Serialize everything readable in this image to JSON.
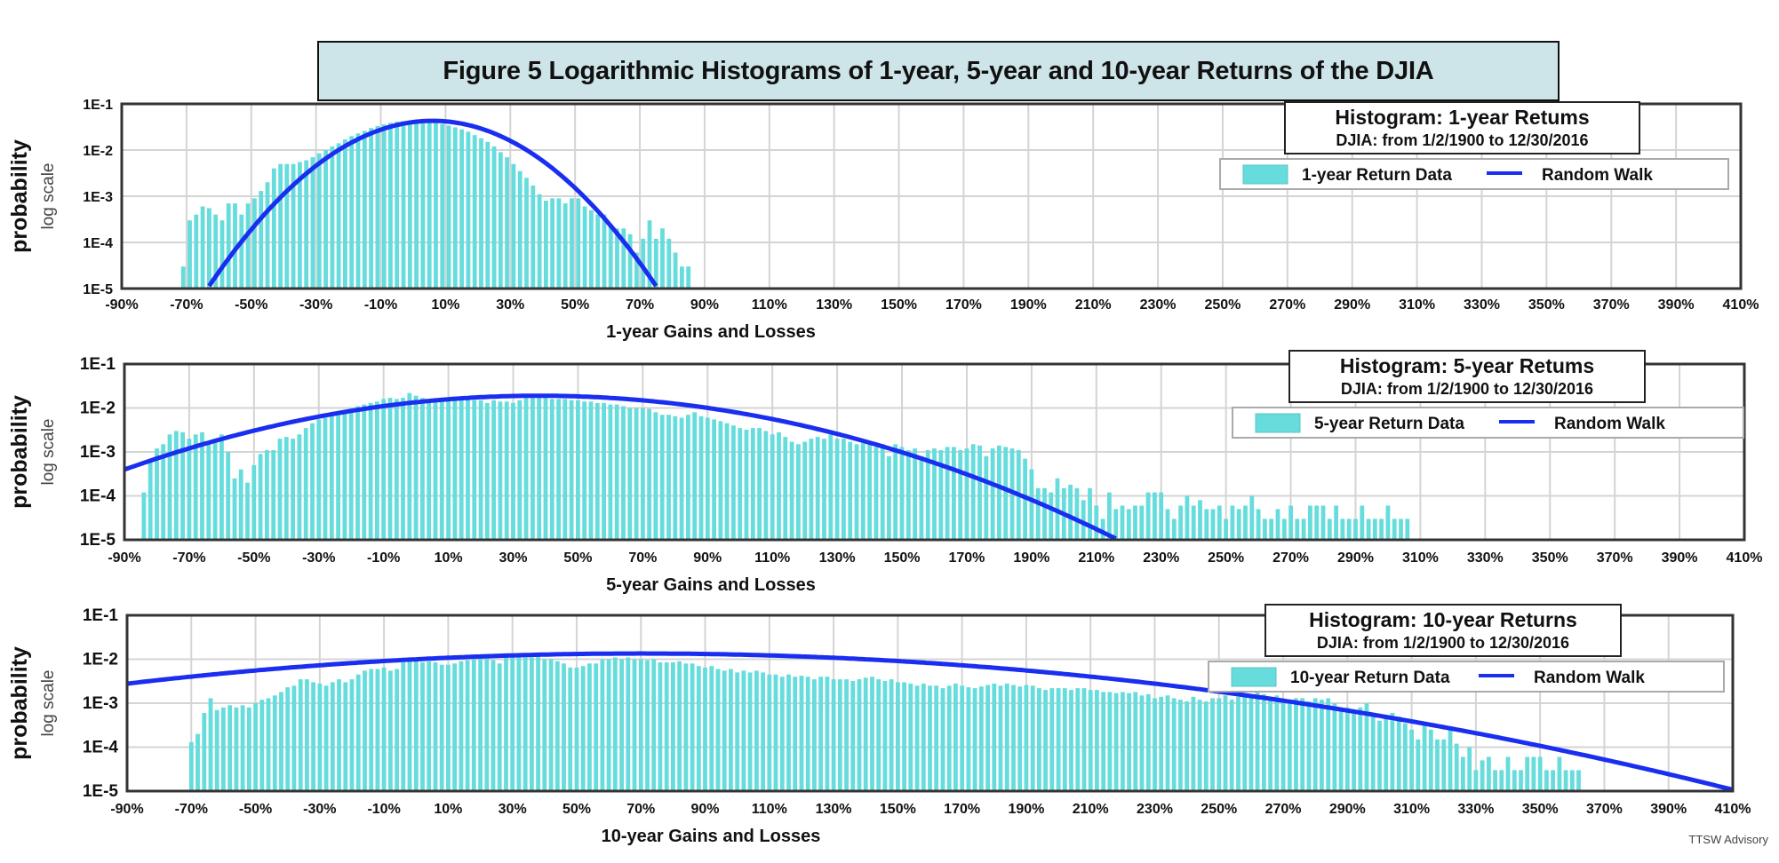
{
  "figure_title": "Figure 5 Logarithmic Histograms of 1-year, 5-year and 10-year Returns of the DJIA",
  "credit": "TTSW Advisory",
  "colors": {
    "bar": "#66dcdc",
    "line": "#1a2ef0",
    "grid": "#d4d4d4",
    "title_bg": "#cde5e8"
  },
  "chart_data": [
    {
      "type": "bar",
      "name": "1-year",
      "title": "Histogram: 1-year Retums",
      "subtitle": "DJIA: from 1/2/1900 to 12/30/2016",
      "legend": [
        "1-year Return Data",
        "Random Walk"
      ],
      "legend_position": "top-right",
      "xlabel": "1-year Gains and Losses",
      "ylabel": "probability",
      "ylabel2": "log scale",
      "yscale": "log",
      "ylim": [
        1e-05,
        0.1
      ],
      "yticks": [
        "1E-1",
        "1E-2",
        "1E-3",
        "1E-4",
        "1E-5"
      ],
      "xlim": [
        -90,
        410
      ],
      "xticks": [
        "-90%",
        "-70%",
        "-50%",
        "-30%",
        "-10%",
        "10%",
        "30%",
        "50%",
        "70%",
        "90%",
        "110%",
        "130%",
        "150%",
        "170%",
        "190%",
        "210%",
        "230%",
        "250%",
        "270%",
        "290%",
        "310%",
        "330%",
        "350%",
        "370%",
        "390%",
        "410%"
      ],
      "grid": true,
      "bin_width": 2,
      "bins_start": -71,
      "values": [
        3e-05,
        0.0003,
        0.0004,
        0.0006,
        0.00055,
        0.0004,
        0.0003,
        0.0007,
        0.0007,
        0.0004,
        0.0007,
        0.0009,
        0.0013,
        0.002,
        0.004,
        0.005,
        0.005,
        0.005,
        0.0055,
        0.006,
        0.007,
        0.0085,
        0.01,
        0.012,
        0.014,
        0.017,
        0.02,
        0.023,
        0.026,
        0.03,
        0.033,
        0.036,
        0.039,
        0.041,
        0.042,
        0.043,
        0.043,
        0.042,
        0.041,
        0.039,
        0.037,
        0.034,
        0.031,
        0.028,
        0.025,
        0.021,
        0.018,
        0.015,
        0.012,
        0.009,
        0.007,
        0.005,
        0.0035,
        0.0025,
        0.0017,
        0.0011,
        0.0008,
        0.0009,
        0.0009,
        0.0007,
        0.0009,
        0.0009,
        0.0006,
        0.0005,
        0.0004,
        0.0004,
        0.00025,
        0.0002,
        0.0002,
        0.00015,
        6e-05,
        0.00012,
        0.0003,
        0.00012,
        0.0002,
        0.00012,
        6e-05,
        3e-05,
        3e-05
      ],
      "random_walk": {
        "mean": 6,
        "sd": 17,
        "peak": 0.043
      }
    },
    {
      "type": "bar",
      "name": "5-year",
      "title": "Histogram: 5-year Retums",
      "subtitle": "DJIA: from 1/2/1900 to 12/30/2016",
      "legend": [
        "5-year Return Data",
        "Random Walk"
      ],
      "legend_position": "top-right",
      "xlabel": "5-year Gains and Losses",
      "ylabel": "probability",
      "ylabel2": "log scale",
      "yscale": "log",
      "ylim": [
        1e-05,
        0.1
      ],
      "yticks": [
        "1E-1",
        "1E-2",
        "1E-3",
        "1E-4",
        "1E-5"
      ],
      "xlim": [
        -90,
        410
      ],
      "xticks": [
        "-90%",
        "-70%",
        "-50%",
        "-30%",
        "-10%",
        "10%",
        "30%",
        "50%",
        "70%",
        "90%",
        "110%",
        "130%",
        "150%",
        "170%",
        "190%",
        "210%",
        "230%",
        "250%",
        "270%",
        "290%",
        "310%",
        "330%",
        "350%",
        "370%",
        "390%",
        "410%"
      ],
      "grid": true,
      "bin_width": 2,
      "bins_start": -84,
      "values": [
        0.00012,
        0.0006,
        0.0012,
        0.0015,
        0.0025,
        0.003,
        0.0028,
        0.002,
        0.0025,
        0.0028,
        0.0015,
        0.002,
        0.0025,
        0.001,
        0.00025,
        0.0004,
        0.0002,
        0.0005,
        0.0009,
        0.0011,
        0.0011,
        0.002,
        0.0022,
        0.002,
        0.0025,
        0.0035,
        0.0045,
        0.0055,
        0.006,
        0.007,
        0.008,
        0.009,
        0.01,
        0.011,
        0.012,
        0.013,
        0.014,
        0.016,
        0.017,
        0.016,
        0.017,
        0.022,
        0.019,
        0.017,
        0.015,
        0.015,
        0.014,
        0.015,
        0.015,
        0.016,
        0.016,
        0.015,
        0.015,
        0.013,
        0.015,
        0.014,
        0.014,
        0.013,
        0.015,
        0.017,
        0.017,
        0.017,
        0.017,
        0.016,
        0.016,
        0.016,
        0.015,
        0.015,
        0.014,
        0.014,
        0.013,
        0.013,
        0.012,
        0.012,
        0.011,
        0.01,
        0.01,
        0.01,
        0.0095,
        0.008,
        0.007,
        0.007,
        0.0065,
        0.006,
        0.007,
        0.008,
        0.0065,
        0.006,
        0.0055,
        0.005,
        0.0045,
        0.004,
        0.0035,
        0.0032,
        0.0035,
        0.0035,
        0.003,
        0.0025,
        0.0028,
        0.0022,
        0.0017,
        0.0015,
        0.0017,
        0.002,
        0.0022,
        0.002,
        0.0025,
        0.002,
        0.002,
        0.0017,
        0.0015,
        0.0016,
        0.0017,
        0.0013,
        0.0015,
        0.0008,
        0.0015,
        0.0013,
        0.0011,
        0.0012,
        0.0008,
        0.0011,
        0.0012,
        0.0011,
        0.0013,
        0.0013,
        0.0011,
        0.0012,
        0.0015,
        0.0014,
        0.0008,
        0.0012,
        0.0014,
        0.0013,
        0.0012,
        0.0011,
        0.0007,
        0.0004,
        0.00015,
        0.00015,
        0.00012,
        0.00025,
        0.00015,
        0.00018,
        0.00015,
        8e-05,
        0.00015,
        6e-05,
        3e-05,
        0.00012,
        5e-05,
        6e-05,
        5e-05,
        6e-05,
        6e-05,
        0.00012,
        0.00012,
        0.00012,
        5e-05,
        3e-05,
        6e-05,
        0.0001,
        6e-05,
        8e-05,
        5e-05,
        5e-05,
        6e-05,
        3e-05,
        6e-05,
        5e-05,
        6e-05,
        0.0001,
        5e-05,
        3e-05,
        3e-05,
        5e-05,
        3e-05,
        6e-05,
        3e-05,
        3e-05,
        6e-05,
        6e-05,
        6e-05,
        3e-05,
        6e-05,
        3e-05,
        3e-05,
        3e-05,
        6e-05,
        3e-05,
        3e-05,
        3e-05,
        6e-05,
        3e-05,
        3e-05,
        3e-05
      ],
      "random_walk": {
        "mean": 38,
        "sd": 46,
        "peak": 0.019
      }
    },
    {
      "type": "bar",
      "name": "10-year",
      "title": "Histogram: 10-year Returns",
      "subtitle": "DJIA: from 1/2/1900 to 12/30/2016",
      "legend": [
        "10-year Return Data",
        "Random Walk"
      ],
      "legend_position": "top-right",
      "xlabel": "10-year Gains and Losses",
      "ylabel": "probability",
      "ylabel2": "log scale",
      "yscale": "log",
      "ylim": [
        1e-05,
        0.1
      ],
      "yticks": [
        "1E-1",
        "1E-2",
        "1E-3",
        "1E-4",
        "1E-5"
      ],
      "xlim": [
        -90,
        410
      ],
      "xticks": [
        "-90%",
        "-70%",
        "-50%",
        "-30%",
        "-10%",
        "10%",
        "30%",
        "50%",
        "70%",
        "90%",
        "110%",
        "130%",
        "150%",
        "170%",
        "190%",
        "210%",
        "230%",
        "250%",
        "270%",
        "290%",
        "310%",
        "330%",
        "350%",
        "370%",
        "390%",
        "410%"
      ],
      "grid": true,
      "bin_width": 2,
      "bins_start": -70,
      "values": [
        0.00013,
        0.0002,
        0.0006,
        0.0013,
        0.0007,
        0.0008,
        0.0009,
        0.0008,
        0.0009,
        0.0008,
        0.001,
        0.0012,
        0.0013,
        0.0015,
        0.0018,
        0.0023,
        0.0025,
        0.0035,
        0.0035,
        0.003,
        0.0028,
        0.0025,
        0.003,
        0.0035,
        0.003,
        0.0035,
        0.0045,
        0.0055,
        0.006,
        0.006,
        0.0065,
        0.0055,
        0.006,
        0.0085,
        0.009,
        0.009,
        0.0085,
        0.009,
        0.0085,
        0.0075,
        0.0075,
        0.008,
        0.009,
        0.0095,
        0.01,
        0.012,
        0.011,
        0.0095,
        0.008,
        0.011,
        0.012,
        0.012,
        0.011,
        0.011,
        0.013,
        0.01,
        0.01,
        0.009,
        0.008,
        0.0065,
        0.0065,
        0.007,
        0.008,
        0.008,
        0.01,
        0.01,
        0.011,
        0.01,
        0.011,
        0.01,
        0.01,
        0.0095,
        0.01,
        0.0085,
        0.0085,
        0.0085,
        0.009,
        0.008,
        0.008,
        0.007,
        0.0065,
        0.007,
        0.006,
        0.0055,
        0.006,
        0.005,
        0.0055,
        0.005,
        0.0055,
        0.005,
        0.0045,
        0.0045,
        0.004,
        0.0045,
        0.004,
        0.0042,
        0.004,
        0.0035,
        0.004,
        0.004,
        0.0035,
        0.0035,
        0.0035,
        0.0032,
        0.0035,
        0.0038,
        0.004,
        0.0035,
        0.0032,
        0.0035,
        0.003,
        0.003,
        0.0028,
        0.0025,
        0.0028,
        0.0025,
        0.0025,
        0.0022,
        0.0025,
        0.0028,
        0.0025,
        0.0023,
        0.0022,
        0.0024,
        0.0026,
        0.0028,
        0.0025,
        0.0028,
        0.0026,
        0.0024,
        0.0026,
        0.0025,
        0.0022,
        0.002,
        0.0022,
        0.0022,
        0.0022,
        0.002,
        0.0022,
        0.0022,
        0.002,
        0.002,
        0.0018,
        0.0018,
        0.0017,
        0.0018,
        0.0017,
        0.0018,
        0.0015,
        0.0016,
        0.0013,
        0.0014,
        0.0015,
        0.0013,
        0.0012,
        0.0011,
        0.0014,
        0.0012,
        0.0011,
        0.0013,
        0.0013,
        0.0015,
        0.0012,
        0.0014,
        0.0016,
        0.0016,
        0.0018,
        0.0016,
        0.0014,
        0.0015,
        0.0012,
        0.0011,
        0.0013,
        0.0013,
        0.0011,
        0.0013,
        0.0012,
        0.0013,
        0.001,
        0.0007,
        0.0008,
        0.0007,
        0.0008,
        0.001,
        0.0006,
        0.0004,
        0.0005,
        0.0006,
        0.0005,
        0.00035,
        0.00025,
        0.00015,
        0.00035,
        0.00025,
        0.00015,
        0.00015,
        0.00025,
        0.00012,
        6e-05,
        0.0001,
        3e-05,
        5e-05,
        6e-05,
        3e-05,
        3e-05,
        6e-05,
        3e-05,
        3e-05,
        6e-05,
        6e-05,
        6e-05,
        3e-05,
        3e-05,
        6e-05,
        3e-05,
        3e-05,
        3e-05
      ],
      "random_walk": {
        "mean": 70,
        "sd": 90,
        "peak": 0.0135
      }
    }
  ]
}
